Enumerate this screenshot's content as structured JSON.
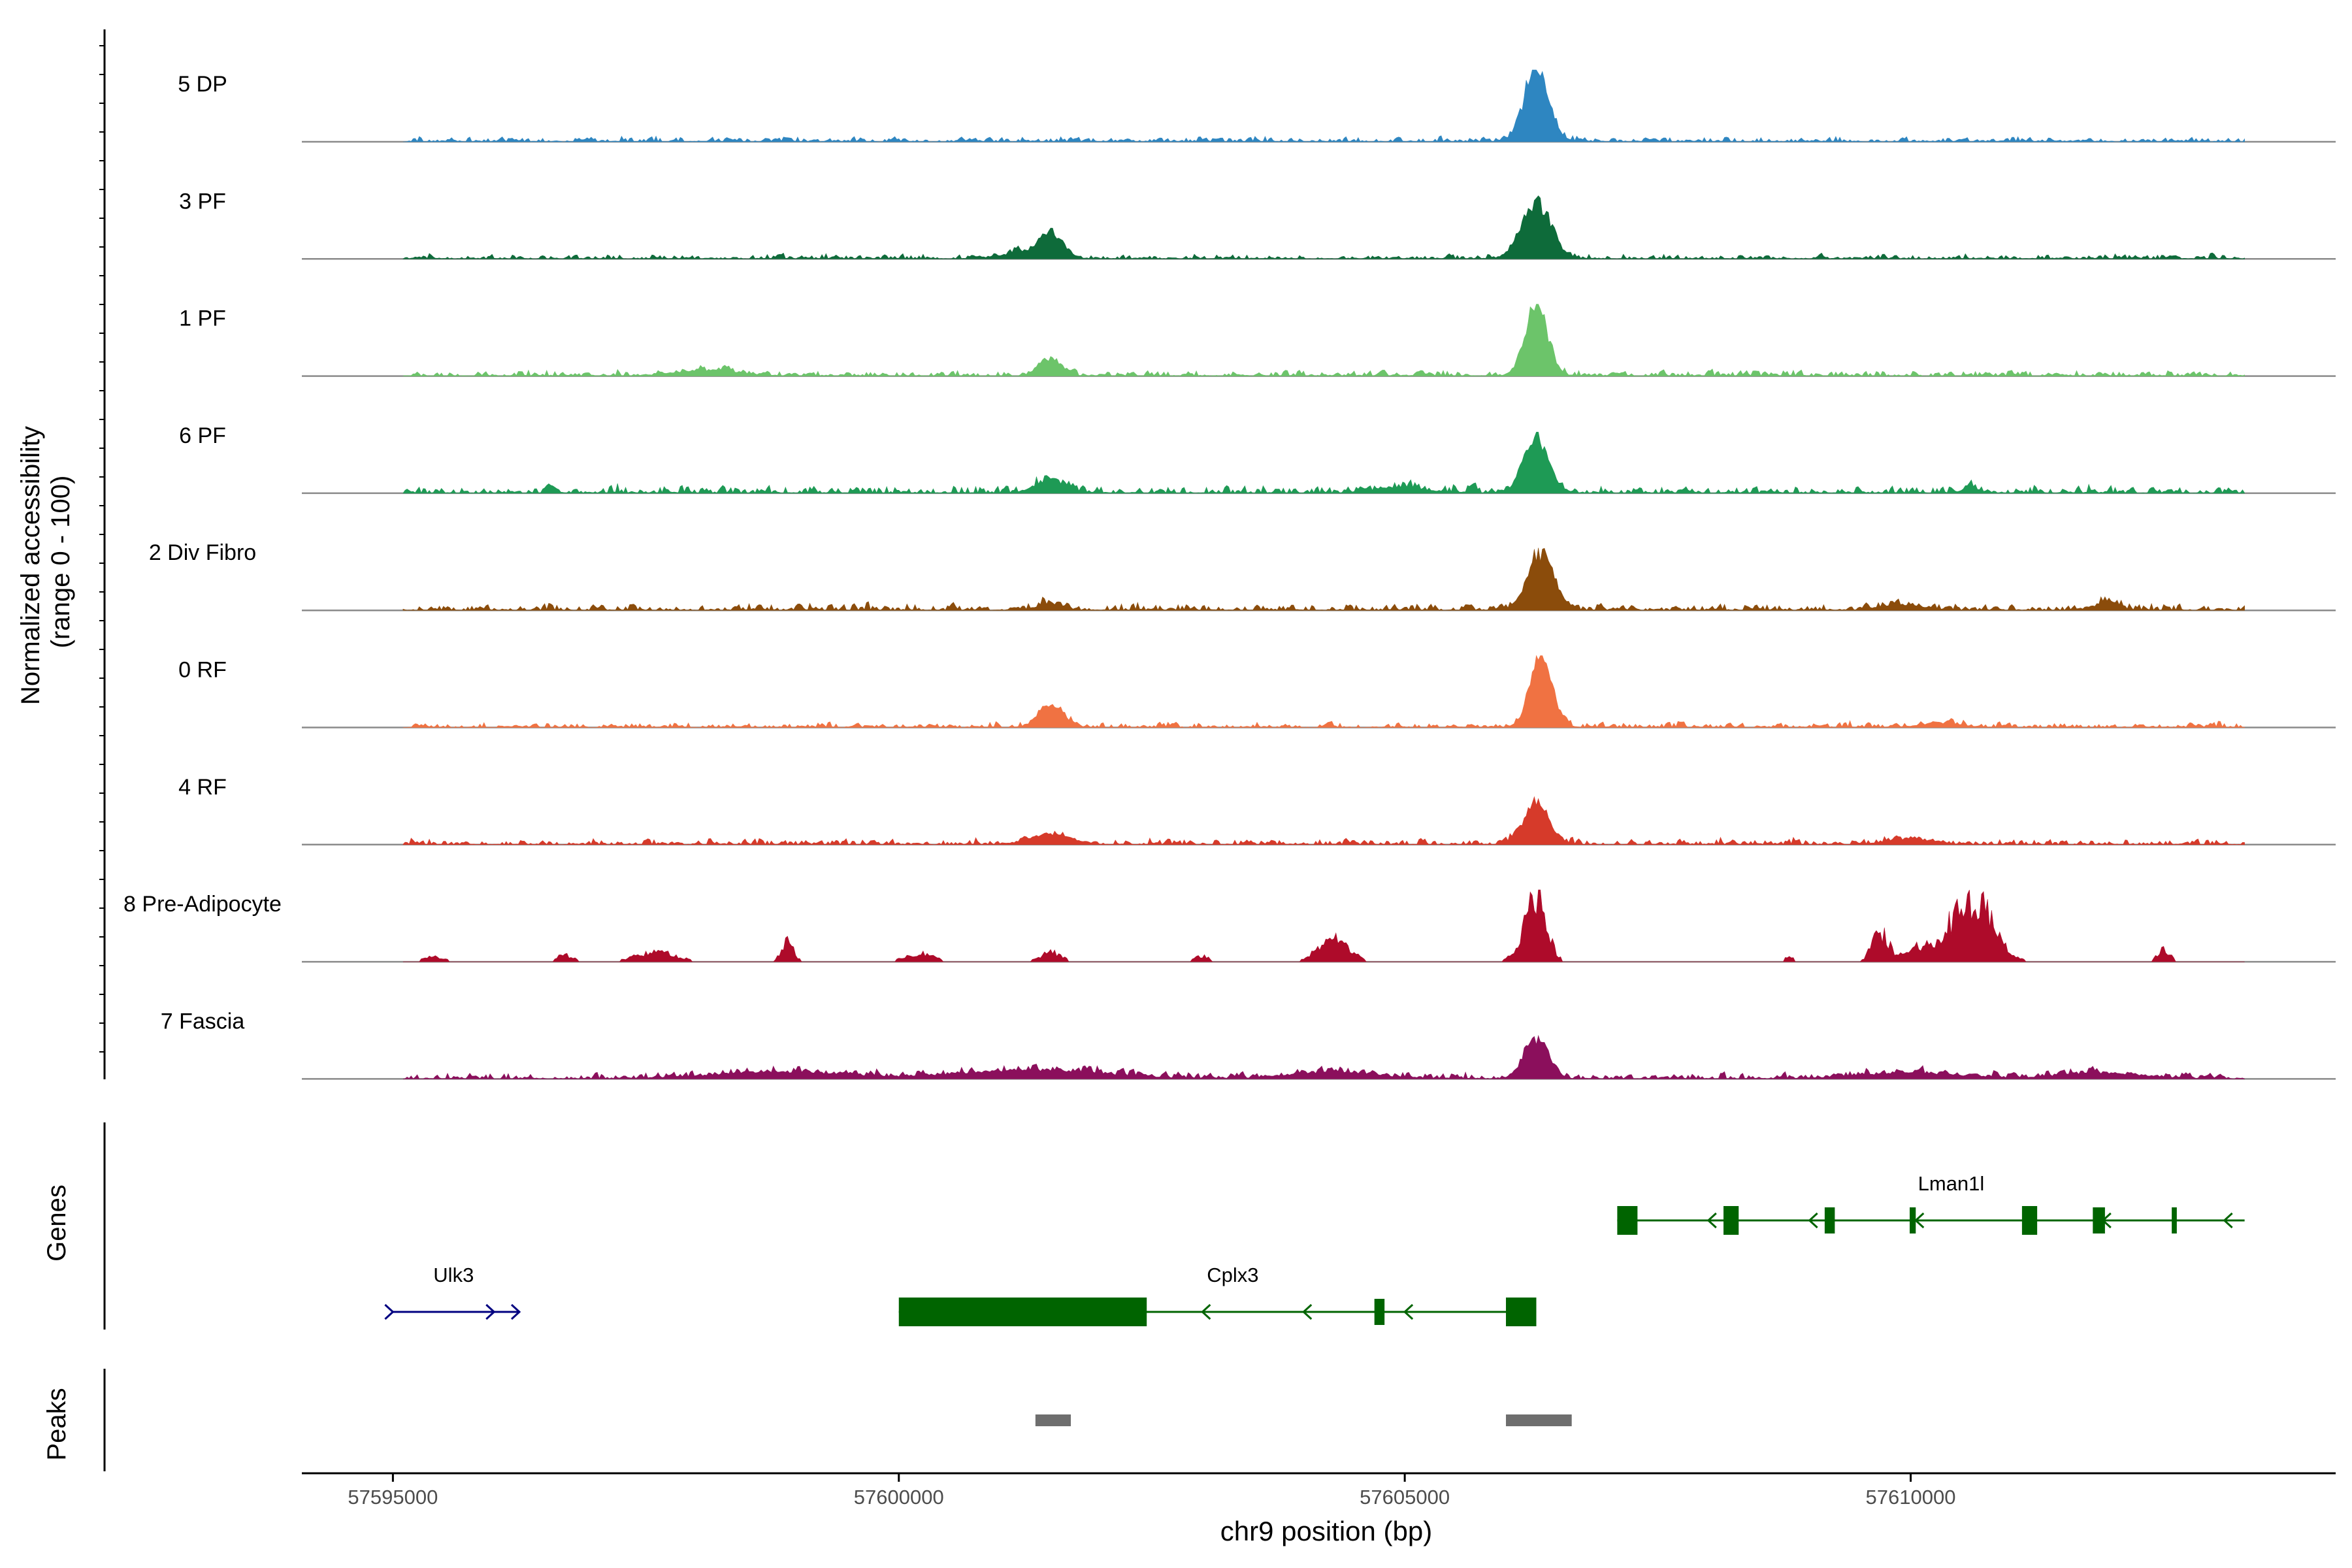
{
  "chart_data": {
    "type": "area",
    "title": "",
    "ylabel_line1": "Normalized accessibility",
    "ylabel_line2": "(range 0 - 100)",
    "xlabel": "chr9 position (bp)",
    "xlim": [
      57594100,
      57614200
    ],
    "xticks": [
      57595000,
      57600000,
      57605000,
      57610000
    ],
    "xtick_labels": [
      "57595000",
      "57600000",
      "57605000",
      "57610000"
    ],
    "ylim": [
      0,
      100
    ],
    "track_range": [
      57595100,
      57613300
    ],
    "tracks": [
      {
        "name": "5 DP",
        "color": "#2E86C1",
        "noise": 5,
        "sparse": false,
        "peaks": [
          [
            57606300,
            100,
            120
          ]
        ]
      },
      {
        "name": "3 PF",
        "color": "#0E6B3A",
        "noise": 5,
        "sparse": false,
        "peaks": [
          [
            57606300,
            80,
            140
          ],
          [
            57601500,
            35,
            120
          ],
          [
            57601200,
            8,
            200
          ]
        ]
      },
      {
        "name": "1 PF",
        "color": "#6CC46A",
        "noise": 6,
        "sparse": false,
        "peaks": [
          [
            57606300,
            100,
            110
          ],
          [
            57601500,
            25,
            100
          ],
          [
            57598100,
            8,
            300
          ]
        ]
      },
      {
        "name": "6 PF",
        "color": "#1E9A55",
        "noise": 8,
        "sparse": false,
        "peaks": [
          [
            57606300,
            80,
            120
          ],
          [
            57601500,
            18,
            150
          ],
          [
            57604950,
            8,
            250
          ],
          [
            57610600,
            8,
            80
          ]
        ]
      },
      {
        "name": "2 Div Fibro",
        "color": "#8B4C0B",
        "noise": 7,
        "sparse": false,
        "peaks": [
          [
            57606350,
            80,
            130
          ],
          [
            57601500,
            10,
            120
          ],
          [
            57611950,
            12,
            100
          ],
          [
            57609900,
            8,
            200
          ]
        ]
      },
      {
        "name": "0 RF",
        "color": "#F07242",
        "noise": 5,
        "sparse": false,
        "peaks": [
          [
            57606350,
            100,
            110
          ],
          [
            57601500,
            30,
            120
          ],
          [
            57610300,
            6,
            200
          ]
        ]
      },
      {
        "name": "4 RF",
        "color": "#D63A2A",
        "noise": 6,
        "sparse": false,
        "peaks": [
          [
            57606300,
            60,
            120
          ],
          [
            57601500,
            14,
            200
          ],
          [
            57610000,
            8,
            200
          ]
        ]
      },
      {
        "name": "8 Pre-Adipocyte",
        "color": "#AE0B2A",
        "noise": 0,
        "sparse": true,
        "peaks": [
          [
            57606300,
            100,
            100
          ],
          [
            57610600,
            95,
            200
          ],
          [
            57609700,
            45,
            80
          ],
          [
            57604300,
            35,
            150
          ],
          [
            57598900,
            28,
            60
          ],
          [
            57610100,
            20,
            150
          ],
          [
            57612500,
            18,
            60
          ],
          [
            57601500,
            14,
            100
          ],
          [
            57597600,
            14,
            200
          ],
          [
            57600200,
            12,
            150
          ],
          [
            57603000,
            8,
            80
          ],
          [
            57596700,
            10,
            80
          ],
          [
            57595400,
            8,
            100
          ],
          [
            57608800,
            6,
            60
          ],
          [
            57606150,
            8,
            120
          ]
        ]
      },
      {
        "name": "7 Fascia",
        "color": "#8B0F5C",
        "noise": 7,
        "sparse": false,
        "peaks": [
          [
            57606300,
            55,
            120
          ],
          [
            57601300,
            12,
            700
          ],
          [
            57598800,
            10,
            600
          ],
          [
            57604300,
            10,
            400
          ],
          [
            57611900,
            8,
            400
          ],
          [
            57610000,
            8,
            500
          ]
        ]
      }
    ],
    "genes_label": "Genes",
    "peaks_label": "Peaks",
    "genes": [
      {
        "name": "Lman1l",
        "strand": "-",
        "row": 0,
        "color": "#006400",
        "start": 57607100,
        "end": 57613300,
        "exons": [
          [
            57607100,
            57607300
          ],
          [
            57608150,
            57608300
          ],
          [
            57609150,
            57609250
          ],
          [
            57609990,
            57610050
          ],
          [
            57611100,
            57611250
          ],
          [
            57611800,
            57611920
          ],
          [
            57612580,
            57612630
          ]
        ],
        "arrows": [
          57608000,
          57609000,
          57610050,
          57611900,
          57613100
        ]
      },
      {
        "name": "Ulk3",
        "strand": "+",
        "row": 1,
        "color": "#000080",
        "start": 57595000,
        "end": 57596250,
        "exons": [],
        "arrows": [
          57595000,
          57596000,
          57596250
        ]
      },
      {
        "name": "Cplx3",
        "strand": "-",
        "row": 1,
        "color": "#006400",
        "start": 57600000,
        "end": 57606300,
        "exons": [
          [
            57600000,
            57602450
          ],
          [
            57604700,
            57604800
          ],
          [
            57606000,
            57606300
          ]
        ],
        "arrows": [
          57603000,
          57604000,
          57605000
        ]
      }
    ],
    "peak_regions": [
      [
        57601350,
        57601700
      ],
      [
        57606000,
        57606650
      ]
    ]
  }
}
